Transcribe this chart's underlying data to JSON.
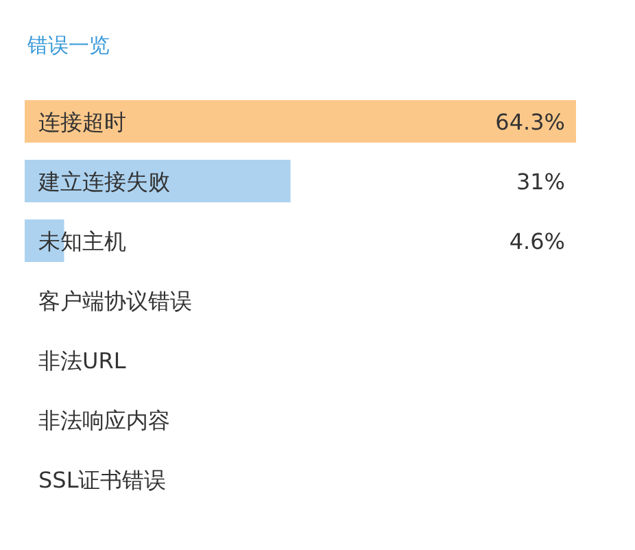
{
  "chart_data": {
    "type": "bar",
    "orientation": "horizontal",
    "title": "错误一览",
    "categories": [
      "连接超时",
      "建立连接失败",
      "未知主机",
      "客户端协议错误",
      "非法URL",
      "非法响应内容",
      "SSL证书错误"
    ],
    "values": [
      64.3,
      31,
      4.6,
      0,
      0,
      0,
      0
    ],
    "colors": [
      "#fcc88a",
      "#acd2f0",
      "#acd2f0",
      "#acd2f0",
      "#acd2f0",
      "#acd2f0",
      "#acd2f0"
    ],
    "value_labels": [
      "64.3%",
      "31%",
      "4.6%",
      null,
      null,
      null,
      null
    ]
  }
}
